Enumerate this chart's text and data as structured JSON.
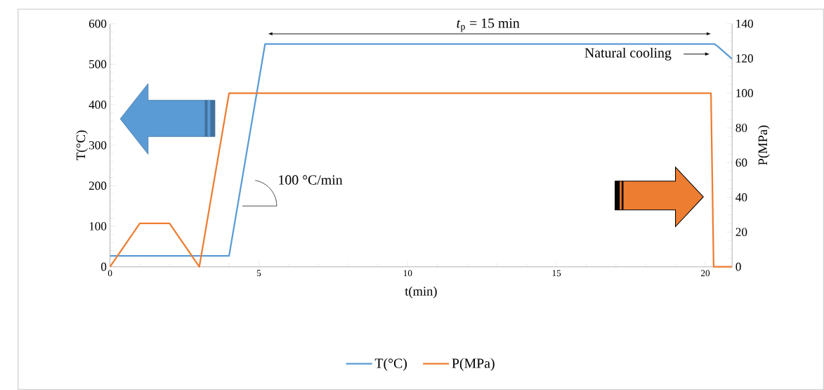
{
  "chart_data": {
    "type": "line",
    "xlabel": "t(min)",
    "ylabel": "T(°C)",
    "y2label": "P(MPa)",
    "xlim": [
      0,
      20.9
    ],
    "xticks": [
      0,
      5,
      10,
      15,
      20
    ],
    "ylim": [
      0,
      600
    ],
    "yticks": [
      0,
      100,
      200,
      300,
      400,
      500,
      600
    ],
    "y2lim": [
      0,
      140
    ],
    "y2ticks": [
      0,
      20,
      40,
      60,
      80,
      100,
      120,
      140
    ],
    "legend": "bottom",
    "series": [
      {
        "name": "T(°C)",
        "color": "#5b9bd5",
        "x": [
          0,
          4,
          5.21,
          20.3,
          20.4,
          20.9
        ],
        "values": [
          27,
          27,
          550,
          550,
          545,
          513
        ]
      },
      {
        "name": "P(MPa)",
        "color": "#ed7d31",
        "axis": "y2",
        "x": [
          0,
          1,
          2,
          3,
          4,
          20.19,
          20.28,
          20.9
        ],
        "values": [
          0,
          25,
          25,
          0,
          100,
          100,
          0,
          0
        ]
      }
    ],
    "annotations": [
      "*t*$_{p}$ = 15 min",
      "Natural cooling",
      "100 °C/min"
    ]
  }
}
